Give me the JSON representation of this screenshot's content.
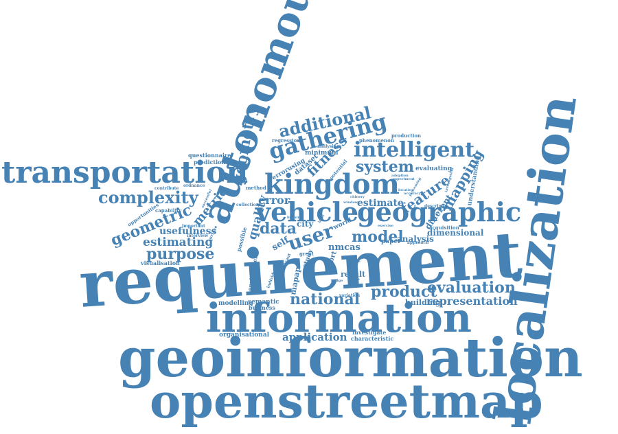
{
  "color": "#4682b4",
  "words": {
    "requirement": "requirement",
    "geoinformation": "geoinformation",
    "openstreetmap": "openstreetmap",
    "localization": "localization",
    "information": "information",
    "autonomous": "autonomous",
    "transportation": "transportation",
    "kingdom": "kingdom",
    "geographic": "geographic",
    "vehicle": "vehicle",
    "gathering": "gathering",
    "intelligent": "intelligent",
    "additional": "additional",
    "complexity": "complexity",
    "geometric": "geometric",
    "purpose": "purpose",
    "estimating": "estimating",
    "national": "national",
    "evaluation": "evaluation",
    "representation": "representation",
    "product": "product",
    "application": "application",
    "system": "system",
    "mapping": "mapping",
    "feature": "feature",
    "user": "user",
    "data": "data",
    "model": "model",
    "error": "error",
    "quality": "quality",
    "fitness": "fitness",
    "geometry": "geometry",
    "usefulness": "usefulness",
    "metric": "metric",
    "dimensional": "dimensional",
    "analysis": "analysis",
    "estimate": "estimate",
    "nmcas": "nmcas",
    "result": "result",
    "building": "building",
    "semantic": "semantic",
    "business": "business",
    "modelling": "modelling",
    "organisational": "organisational",
    "characteristic": "characteristic",
    "investigate": "investigate",
    "visualisation": "visualisation",
    "interview": "interview",
    "questionnaire": "questionnaire",
    "prediction": "prediction",
    "ordnance": "ordnance",
    "contribute": "contribute",
    "capability": "capability",
    "opportunities": "opportunities",
    "dataset": "dataset",
    "errorusing": "errorusing",
    "minimum": "minimum",
    "regression": "regression",
    "analysing": "analysing",
    "production": "production",
    "phenomenon": "phenomenon",
    "evaluating": "evaluating",
    "understanding": "understanding",
    "different": "different",
    "acquisition": "acquisition",
    "approach": "approach",
    "paper": "paper",
    "perspective": "perspective",
    "descriptor": "descriptor",
    "exercise": "exercise",
    "world": "world",
    "city": "city",
    "self": "self",
    "study": "study",
    "mapap": "mapap",
    "port": "port",
    "possible": "possible",
    "environment": "environment",
    "collection": "collection",
    "method": "method",
    "potential": "potential",
    "experiment": "experiment",
    "adoption": "adoption",
    "important": "important",
    "surface": "surface",
    "successful": "successful",
    "individual": "individual",
    "relevant": "relevant",
    "positive": "positive",
    "great": "great",
    "level": "level",
    "variation": "variation",
    "processing": "processing",
    "investigation": "investigation",
    "location": "location",
    "accuracy": "accuracy",
    "britain": "britain",
    "window": "window",
    "chinery": "chinery",
    "value": "value",
    "budge": "budge",
    "relation": "relation"
  }
}
